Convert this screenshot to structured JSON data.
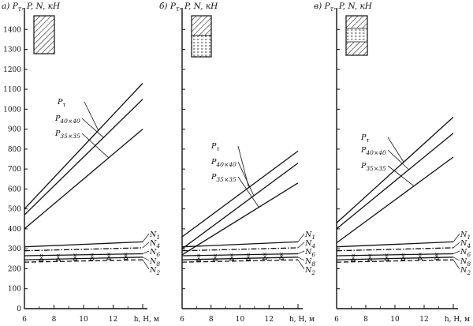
{
  "chart_data": [
    {
      "type": "line",
      "title": "а) P_τ, P, N, кН",
      "panel_letter": "а)",
      "ylabel": "P_τ, P, N, кН",
      "xlabel": "h, Н, м",
      "xlim": [
        6,
        14
      ],
      "ylim": [
        0,
        1500
      ],
      "x_ticks": [
        "6",
        "8",
        "10",
        "12"
      ],
      "y_ticks": [
        "0",
        "100",
        "200",
        "300",
        "400",
        "500",
        "600",
        "700",
        "800",
        "900",
        "1000",
        "1100",
        "1200",
        "1300",
        "1400"
      ],
      "legend_box": "hatched",
      "series": [
        {
          "name": "P_τ",
          "style": "solid",
          "x": [
            6,
            14
          ],
          "y": [
            500,
            1130
          ]
        },
        {
          "name": "P_40×40",
          "style": "solid",
          "x": [
            6,
            14
          ],
          "y": [
            470,
            1050
          ]
        },
        {
          "name": "P_35×35",
          "style": "solid",
          "x": [
            6,
            14
          ],
          "y": [
            400,
            900
          ]
        },
        {
          "name": "N_1",
          "style": "solid",
          "x": [
            6,
            14
          ],
          "y": [
            310,
            335
          ]
        },
        {
          "name": "N_4",
          "style": "dashdot",
          "x": [
            6,
            14
          ],
          "y": [
            290,
            305
          ]
        },
        {
          "name": "N_6",
          "style": "cross",
          "x": [
            6,
            14
          ],
          "y": [
            265,
            275
          ]
        },
        {
          "name": "N_8",
          "style": "triangle",
          "x": [
            6,
            14
          ],
          "y": [
            245,
            258
          ]
        },
        {
          "name": "N_2",
          "style": "dashed",
          "x": [
            6,
            14
          ],
          "y": [
            233,
            245
          ]
        }
      ]
    },
    {
      "type": "line",
      "title": "б) P_τ, P, N, кН",
      "panel_letter": "б)",
      "ylabel": "P_τ, P, N, кН",
      "xlabel": "h, Н, м",
      "xlim": [
        6,
        14
      ],
      "ylim": [
        0,
        1500
      ],
      "x_ticks": [
        "6",
        "8",
        "10",
        "12"
      ],
      "legend_box": "hatched-top",
      "series": [
        {
          "name": "P_τ",
          "style": "solid",
          "x": [
            6,
            14
          ],
          "y": [
            360,
            790
          ]
        },
        {
          "name": "P_40×40",
          "style": "solid",
          "x": [
            6,
            14
          ],
          "y": [
            300,
            730
          ]
        },
        {
          "name": "P_35×35",
          "style": "solid",
          "x": [
            6,
            14
          ],
          "y": [
            270,
            630
          ]
        },
        {
          "name": "N_1",
          "style": "solid",
          "x": [
            6,
            14
          ],
          "y": [
            310,
            335
          ]
        },
        {
          "name": "N_4",
          "style": "dashdot",
          "x": [
            6,
            14
          ],
          "y": [
            290,
            305
          ]
        },
        {
          "name": "N_6",
          "style": "cross",
          "x": [
            6,
            14
          ],
          "y": [
            265,
            275
          ]
        },
        {
          "name": "N_8",
          "style": "triangle",
          "x": [
            6,
            14
          ],
          "y": [
            245,
            258
          ]
        },
        {
          "name": "N_2",
          "style": "dashed",
          "x": [
            6,
            14
          ],
          "y": [
            233,
            245
          ]
        }
      ]
    },
    {
      "type": "line",
      "title": "в) P_τ, P, N, кН",
      "panel_letter": "в)",
      "ylabel": "P_τ, P, N, кН",
      "xlabel": "h, Н, м",
      "xlim": [
        6,
        14
      ],
      "ylim": [
        0,
        1500
      ],
      "x_ticks": [
        "6",
        "8",
        "10",
        "12"
      ],
      "legend_box": "hatched-band",
      "series": [
        {
          "name": "P_τ",
          "style": "solid",
          "x": [
            6,
            14
          ],
          "y": [
            430,
            960
          ]
        },
        {
          "name": "P_40×40",
          "style": "solid",
          "x": [
            6,
            14
          ],
          "y": [
            400,
            880
          ]
        },
        {
          "name": "P_35×35",
          "style": "solid",
          "x": [
            6,
            14
          ],
          "y": [
            330,
            760
          ]
        },
        {
          "name": "N_1",
          "style": "solid",
          "x": [
            6,
            14
          ],
          "y": [
            310,
            335
          ]
        },
        {
          "name": "N_4",
          "style": "dashdot",
          "x": [
            6,
            14
          ],
          "y": [
            290,
            305
          ]
        },
        {
          "name": "N_6",
          "style": "cross",
          "x": [
            6,
            14
          ],
          "y": [
            265,
            275
          ]
        },
        {
          "name": "N_8",
          "style": "triangle",
          "x": [
            6,
            14
          ],
          "y": [
            245,
            258
          ]
        },
        {
          "name": "N_2",
          "style": "dashed",
          "x": [
            6,
            14
          ],
          "y": [
            233,
            245
          ]
        }
      ]
    }
  ]
}
